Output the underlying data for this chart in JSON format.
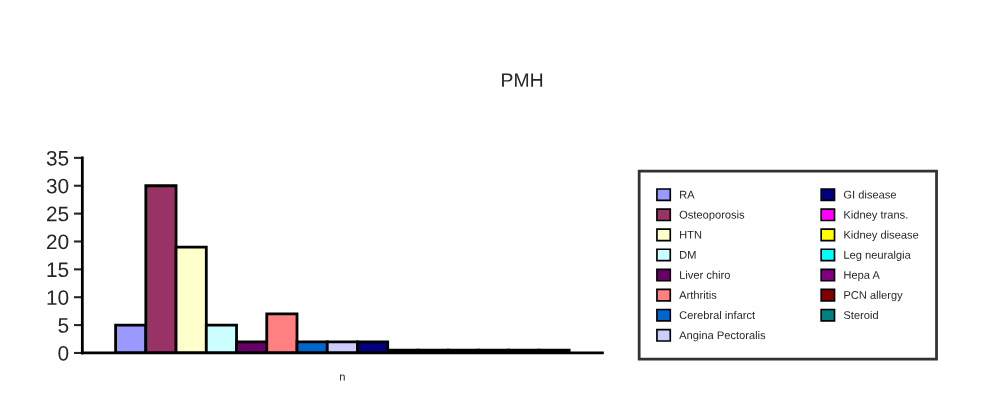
{
  "chart_data": {
    "type": "bar",
    "title": "PMH",
    "categories": [
      "n"
    ],
    "ylim": [
      0,
      35
    ],
    "yticks": [
      0,
      5,
      10,
      15,
      20,
      25,
      30,
      35
    ],
    "grid": false,
    "legend": "right",
    "series": [
      {
        "name": "RA",
        "color": "#9999ff",
        "values": [
          5
        ]
      },
      {
        "name": "Osteoporosis",
        "color": "#993366",
        "values": [
          30
        ]
      },
      {
        "name": "HTN",
        "color": "#ffffcc",
        "values": [
          19
        ]
      },
      {
        "name": "DM",
        "color": "#ccffff",
        "values": [
          5
        ]
      },
      {
        "name": "Liver chiro",
        "color": "#660066",
        "values": [
          2
        ]
      },
      {
        "name": "Arthritis",
        "color": "#ff8080",
        "values": [
          7
        ]
      },
      {
        "name": "Cerebral infarct",
        "color": "#0066cc",
        "values": [
          2
        ]
      },
      {
        "name": "Angina Pectoralis",
        "color": "#ccccff",
        "values": [
          2
        ]
      },
      {
        "name": "GI disease",
        "color": "#000080",
        "values": [
          2
        ]
      },
      {
        "name": "Kidney trans.",
        "color": "#ff00ff",
        "values": [
          0.5
        ]
      },
      {
        "name": "Kidney disease",
        "color": "#ffff00",
        "values": [
          0.5
        ]
      },
      {
        "name": "Leg neuralgia",
        "color": "#00ffff",
        "values": [
          0.5
        ]
      },
      {
        "name": "Hepa A",
        "color": "#800080",
        "values": [
          0.5
        ]
      },
      {
        "name": "PCN allergy",
        "color": "#800000",
        "values": [
          0.5
        ]
      },
      {
        "name": "Steroid",
        "color": "#008080",
        "values": [
          0.5
        ]
      }
    ]
  }
}
